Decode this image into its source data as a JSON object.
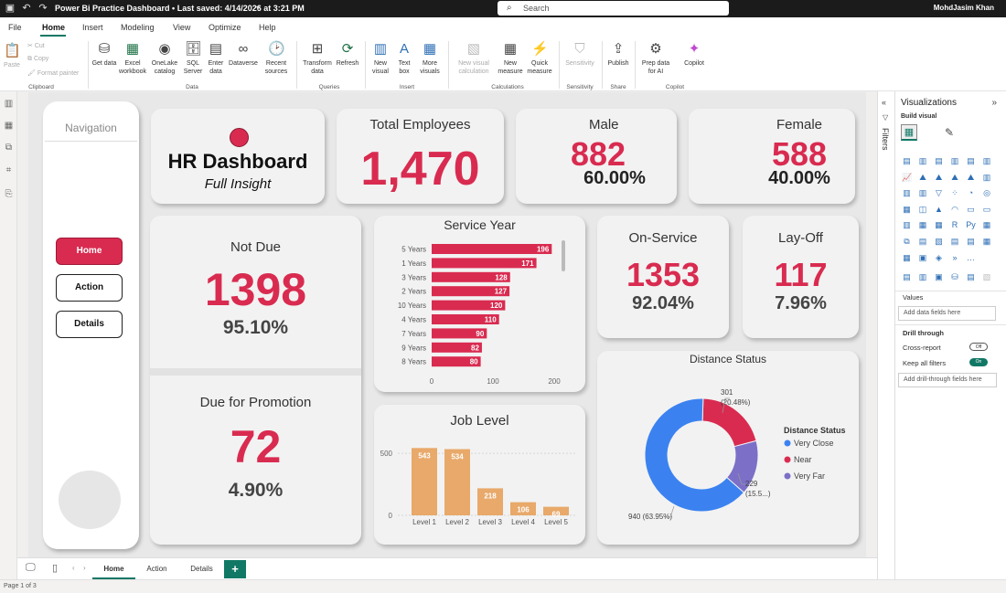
{
  "titlebar": {
    "title": "Power Bi Practice Dashboard • Last saved: 4/14/2026 at 3:21 PM",
    "search_placeholder": "Search",
    "user": "MohdJasim Khan"
  },
  "menu": [
    "File",
    "Home",
    "Insert",
    "Modeling",
    "View",
    "Optimize",
    "Help"
  ],
  "ribbon": {
    "clipboard": {
      "paste": "Paste",
      "cut": "Cut",
      "copy": "Copy",
      "format_painter": "Format painter",
      "group": "Clipboard"
    },
    "data": {
      "get_data": "Get data",
      "excel": "Excel workbook",
      "onelake": "OneLake catalog",
      "sql": "SQL Server",
      "enter": "Enter data",
      "dataverse": "Dataverse",
      "recent": "Recent sources",
      "group": "Data"
    },
    "queries": {
      "transform": "Transform data",
      "refresh": "Refresh",
      "group": "Queries"
    },
    "insert": {
      "new_visual": "New visual",
      "text_box": "Text box",
      "more_visuals": "More visuals",
      "group": "Insert"
    },
    "calculations": {
      "new_visual_calc": "New visual calculation",
      "new_measure": "New measure",
      "quick_measure": "Quick measure",
      "group": "Calculations"
    },
    "sensitivity": {
      "label": "Sensitivity",
      "group": "Sensitivity"
    },
    "share": {
      "publish": "Publish",
      "group": "Share"
    },
    "copilot": {
      "prep": "Prep data for AI",
      "copilot": "Copilot",
      "group": "Copilot"
    }
  },
  "nav": {
    "title": "Navigation",
    "buttons": [
      "Home",
      "Action",
      "Details"
    ]
  },
  "header": {
    "title": "HR Dashboard",
    "subtitle": "Full Insight"
  },
  "kpis": {
    "total": {
      "title": "Total Employees",
      "value": "1,470"
    },
    "male": {
      "title": "Male",
      "value": "882",
      "pct": "60.00%"
    },
    "female": {
      "title": "Female",
      "value": "588",
      "pct": "40.00%"
    },
    "not_due": {
      "title": "Not Due",
      "value": "1398",
      "pct": "95.10%"
    },
    "promotion": {
      "title": "Due for Promotion",
      "value": "72",
      "pct": "4.90%"
    },
    "on_service": {
      "title": "On-Service",
      "value": "1353",
      "pct": "92.04%"
    },
    "layoff": {
      "title": "Lay-Off",
      "value": "117",
      "pct": "7.96%"
    }
  },
  "chart_data": [
    {
      "type": "bar",
      "orientation": "horizontal",
      "title": "Service Year",
      "categories": [
        "5 Years",
        "1 Years",
        "3 Years",
        "2 Years",
        "10 Years",
        "4 Years",
        "7 Years",
        "9 Years",
        "8 Years"
      ],
      "values": [
        196,
        171,
        128,
        127,
        120,
        110,
        90,
        82,
        80
      ],
      "xticks": [
        0,
        100,
        200
      ],
      "xlim": [
        0,
        200
      ],
      "color": "#d92b50"
    },
    {
      "type": "bar",
      "title": "Job Level",
      "categories": [
        "Level 1",
        "Level 2",
        "Level 3",
        "Level 4",
        "Level 5"
      ],
      "values": [
        543,
        534,
        218,
        106,
        69
      ],
      "yticks": [
        0,
        500
      ],
      "ylim": [
        0,
        560
      ],
      "color": "#e8a96a"
    },
    {
      "type": "pie",
      "donut": true,
      "title": "Distance Status",
      "legend_title": "Distance Status",
      "slices": [
        {
          "name": "Very Close",
          "value": 940,
          "label": "940 (63.95%)",
          "color": "#3b82f0"
        },
        {
          "name": "Near",
          "value": 301,
          "label": "301 (20.48%)",
          "color": "#d92b50"
        },
        {
          "name": "Very Far",
          "value": 229,
          "label": "229 (15.5...)",
          "color": "#7b6fc7"
        }
      ],
      "legend_position": "right"
    }
  ],
  "page_tabs": [
    "Home",
    "Action",
    "Details"
  ],
  "status": {
    "page": "Page 1 of 3"
  },
  "filters_label": "Filters",
  "viz_pane": {
    "title": "Visualizations",
    "build": "Build visual",
    "values": "Values",
    "add_data": "Add data fields here",
    "drill": "Drill through",
    "cross": "Cross-report",
    "keep": "Keep all filters",
    "add_drill": "Add drill-through fields here",
    "off": "Off",
    "on": "On"
  }
}
